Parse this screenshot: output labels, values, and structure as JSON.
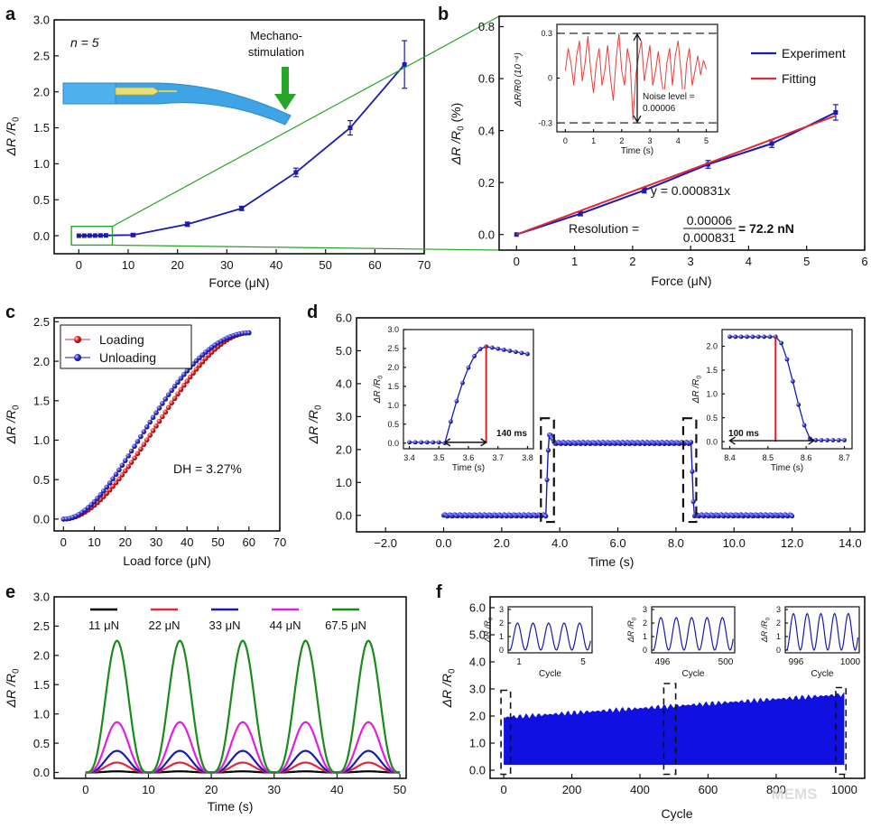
{
  "figure": {
    "watermark": "MEMS"
  },
  "chart_data": [
    {
      "panel": "a",
      "type": "line",
      "ylabel": "ΔR/R0",
      "xlabel": "Force (μN)",
      "xlim": [
        -5,
        70
      ],
      "ylim": [
        -0.25,
        3.0
      ],
      "xticks": [
        0,
        10,
        20,
        30,
        40,
        50,
        60,
        70
      ],
      "yticks": [
        0.0,
        0.5,
        1.0,
        1.5,
        2.0,
        2.5,
        3.0
      ],
      "annotation_n": "n = 5",
      "annotation_stim_line1": "Mechano-",
      "annotation_stim_line2": "stimulation",
      "x": [
        0,
        1.1,
        2.2,
        3.3,
        4.4,
        5.5,
        11,
        22,
        33,
        44,
        55,
        66
      ],
      "y": [
        0.0,
        0.0008,
        0.0018,
        0.0027,
        0.0036,
        0.0047,
        0.01,
        0.16,
        0.38,
        0.88,
        1.5,
        2.38
      ],
      "yerr": [
        0,
        0,
        0,
        0,
        0,
        0,
        0.02,
        0.03,
        0.03,
        0.06,
        0.1,
        0.33
      ]
    },
    {
      "panel": "b",
      "type": "line",
      "ylabel": "ΔR/R0 (%)",
      "xlabel": "Force (μN)",
      "xlim": [
        -0.3,
        6
      ],
      "ylim": [
        -0.06,
        0.84
      ],
      "xticks": [
        0,
        1,
        2,
        3,
        4,
        5,
        6
      ],
      "yticks": [
        0.0,
        0.2,
        0.4,
        0.6,
        0.8
      ],
      "legend_position": "top-right",
      "series": [
        {
          "name": "Experiment",
          "color": "#1a1ab0",
          "x": [
            0,
            1.1,
            2.2,
            3.3,
            4.4,
            5.5
          ],
          "y": [
            0.0,
            0.08,
            0.17,
            0.27,
            0.35,
            0.47
          ],
          "yerr": [
            0,
            0.008,
            0.01,
            0.015,
            0.015,
            0.03
          ]
        },
        {
          "name": "Fitting",
          "color": "#e0283a",
          "x": [
            0,
            5.5
          ],
          "y": [
            0.0,
            0.457
          ]
        }
      ],
      "equation": "y = 0.000831x",
      "resolution_label": "Resolution =",
      "resolution_num": "0.00006",
      "resolution_den": "0.000831",
      "resolution_value": "= 72.2 nN",
      "inset": {
        "ylabel": "ΔR/R0 (10⁻⁴)",
        "xlabel": "Time (s)",
        "xticks": [
          0,
          1,
          2,
          3,
          4,
          5
        ],
        "yticks": [
          0.3,
          0,
          -0.3
        ],
        "ytick_labels": [
          "0.3",
          "0",
          "-0.3"
        ],
        "xlim": [
          -0.3,
          5.4
        ],
        "ylim": [
          -0.36,
          0.36
        ],
        "noise_label_line1": "Noise level =",
        "noise_label_line2": "0.00006",
        "t": [
          0.0,
          0.1,
          0.2,
          0.3,
          0.4,
          0.5,
          0.6,
          0.7,
          0.8,
          0.9,
          1.0,
          1.1,
          1.2,
          1.3,
          1.4,
          1.5,
          1.6,
          1.7,
          1.8,
          1.9,
          2.0,
          2.1,
          2.2,
          2.3,
          2.4,
          2.5,
          2.6,
          2.7,
          2.8,
          2.9,
          3.0,
          3.1,
          3.2,
          3.3,
          3.4,
          3.5,
          3.6,
          3.7,
          3.8,
          3.9,
          4.0,
          4.1,
          4.2,
          4.3,
          4.4,
          4.5,
          4.6,
          4.7,
          4.8,
          4.9,
          5.0
        ],
        "v": [
          0.05,
          0.2,
          0.1,
          -0.05,
          0.15,
          0.25,
          -0.02,
          0.1,
          0.28,
          0.05,
          -0.1,
          0.1,
          0.2,
          -0.05,
          0.05,
          0.22,
          0.0,
          -0.15,
          0.12,
          0.3,
          0.05,
          -0.05,
          0.2,
          0.1,
          -0.28,
          0.02,
          0.15,
          0.25,
          -0.02,
          0.1,
          0.22,
          -0.05,
          0.05,
          0.18,
          0.0,
          -0.12,
          0.1,
          0.2,
          -0.05,
          0.15,
          0.25,
          0.05,
          -0.18,
          0.1,
          0.2,
          -0.05,
          0.05,
          0.15,
          0.02,
          0.12,
          0.06
        ]
      }
    },
    {
      "panel": "c",
      "type": "line",
      "ylabel": "ΔR/R0",
      "xlabel": "Load force (μN)",
      "xlim": [
        -3,
        70
      ],
      "ylim": [
        -0.15,
        2.55
      ],
      "xticks": [
        0,
        10,
        20,
        30,
        40,
        50,
        60,
        70
      ],
      "yticks": [
        0.0,
        0.5,
        1.0,
        1.5,
        2.0,
        2.5
      ],
      "legend_position": "top-left",
      "series": [
        {
          "name": "Loading",
          "color": "#e0283a"
        },
        {
          "name": "Unloading",
          "color": "#1a1ab0"
        }
      ],
      "x_max": 60,
      "y_max": 2.36,
      "annotation": "DH = 3.27%"
    },
    {
      "panel": "d",
      "type": "line",
      "ylabel": "ΔR/R0",
      "xlabel": "Time (s)",
      "xlim": [
        -3,
        14.5
      ],
      "ylim": [
        -0.5,
        6.0
      ],
      "xticks": [
        -2.0,
        0.0,
        2.0,
        4.0,
        6.0,
        8.0,
        10.0,
        12.0,
        14.0
      ],
      "xtick_labels": [
        "−2.0",
        "0.0",
        "2.0",
        "4.0",
        "6.0",
        "8.0",
        "10.0",
        "12.0",
        "14.0"
      ],
      "yticks": [
        0.0,
        1.0,
        2.0,
        3.0,
        4.0,
        5.0,
        6.0
      ],
      "ytick_labels": [
        "0.0",
        "1.0",
        "2.0",
        "3.0",
        "4.0",
        "5.0",
        "6.0"
      ],
      "plateau": 2.2,
      "peak": 2.5,
      "rise_start": 3.52,
      "rise_end": 3.66,
      "fall_start": 8.52,
      "fall_end": 8.62,
      "t_end": 12.0,
      "inset_left": {
        "xlabel": "Time (s)",
        "ylabel": "ΔR/R0",
        "xlim": [
          3.38,
          3.82
        ],
        "ylim": [
          -0.15,
          3.0
        ],
        "xticks": [
          3.4,
          3.5,
          3.6,
          3.7,
          3.8
        ],
        "yticks": [
          0.0,
          0.5,
          1.0,
          1.5,
          2.0,
          2.5,
          3.0
        ],
        "label": "140 ms"
      },
      "inset_right": {
        "xlabel": "Time (s)",
        "ylabel": "ΔR/R0",
        "xlim": [
          8.38,
          8.72
        ],
        "ylim": [
          -0.15,
          2.35
        ],
        "xticks": [
          8.4,
          8.5,
          8.6,
          8.7
        ],
        "yticks": [
          0.0,
          0.5,
          1.0,
          1.5,
          2.0
        ],
        "label": "100 ms"
      }
    },
    {
      "panel": "e",
      "type": "line",
      "ylabel": "ΔR/R0",
      "xlabel": "Time (s)",
      "xlim": [
        -5,
        51
      ],
      "ylim": [
        -0.1,
        3.0
      ],
      "xticks": [
        0,
        10,
        20,
        30,
        40,
        50
      ],
      "yticks": [
        0.0,
        0.5,
        1.0,
        1.5,
        2.0,
        2.5,
        3.0
      ],
      "legend_position": "top",
      "period": 10,
      "series": [
        {
          "name": "11 μN",
          "color": "#000000",
          "amplitude": 0.02
        },
        {
          "name": "22 μN",
          "color": "#e0283a",
          "amplitude": 0.17
        },
        {
          "name": "33 μN",
          "color": "#1a1ab0",
          "amplitude": 0.37
        },
        {
          "name": "44 μN",
          "color": "#e020e0",
          "amplitude": 0.86
        },
        {
          "name": "67.5 μN",
          "color": "#1a8a1a",
          "amplitude": 2.25
        }
      ]
    },
    {
      "panel": "f",
      "type": "area",
      "ylabel": "ΔR/R0",
      "xlabel": "Cycle",
      "xlim": [
        -40,
        1060
      ],
      "ylim": [
        -0.3,
        6.4
      ],
      "xticks": [
        0,
        200,
        400,
        600,
        800,
        1000
      ],
      "yticks": [
        0.0,
        1.0,
        2.0,
        3.0,
        4.0,
        5.0,
        6.0
      ],
      "ytick_labels": [
        "0.0",
        "1.0",
        "2.0",
        "3.0",
        "4.0",
        "5.0",
        "6.0"
      ],
      "color": "#1010e0",
      "upper_start": 1.95,
      "upper_end": 2.8,
      "lower": 0.2,
      "insets": [
        {
          "xlabel": "Cycle",
          "xtick_labels": [
            "1",
            "5"
          ],
          "ylabel": "ΔR/R0",
          "yticks": [
            0,
            1,
            2,
            3
          ]
        },
        {
          "xlabel": "Cycle",
          "xtick_labels": [
            "496",
            "500"
          ],
          "ylabel": "ΔR/R0",
          "yticks": [
            0,
            1,
            2,
            3
          ]
        },
        {
          "xlabel": "Cycle",
          "xtick_labels": [
            "996",
            "1000"
          ],
          "ylabel": "ΔR/R0",
          "yticks": [
            0,
            1,
            2,
            3
          ]
        }
      ]
    }
  ]
}
